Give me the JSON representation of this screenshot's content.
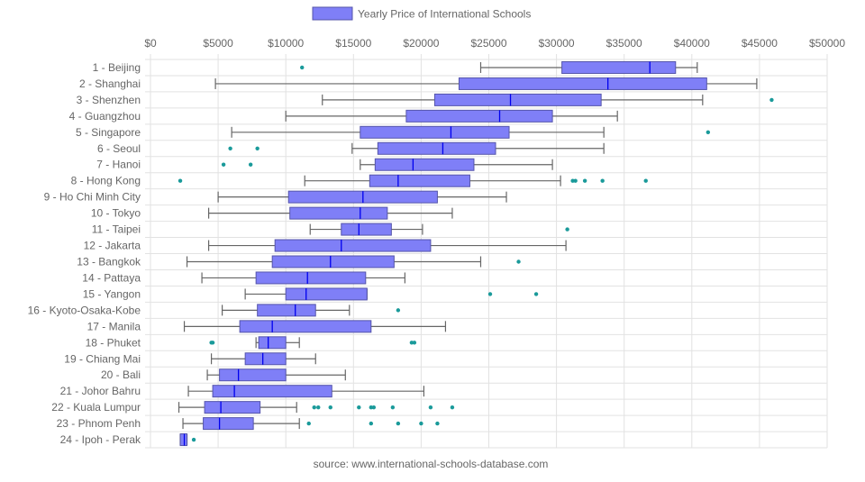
{
  "chart_data": {
    "type": "boxplot",
    "orientation": "horizontal",
    "legend": {
      "label": "Yearly Price of International Schools",
      "position": "top"
    },
    "source": "source: www.international-schools-database.com",
    "xlim": [
      0,
      50000
    ],
    "x_ticks": [
      0,
      5000,
      10000,
      15000,
      20000,
      25000,
      30000,
      35000,
      40000,
      45000,
      50000
    ],
    "x_tick_labels": [
      "$0",
      "$5000",
      "$10000",
      "$15000",
      "$20000",
      "$25000",
      "$30000",
      "$35000",
      "$40000",
      "$45000",
      "$50000"
    ],
    "grid": true,
    "colors": {
      "box_fill": "#7f7ff7",
      "box_border": "#5555aa",
      "median": "#0000ee",
      "whisker": "#666666",
      "outlier": "#1a9a9a"
    },
    "categories": [
      "1 - Beijing",
      "2 - Shanghai",
      "3 - Shenzhen",
      "4 - Guangzhou",
      "5 - Singapore",
      "6 - Seoul",
      "7 - Hanoi",
      "8 - Hong Kong",
      "9 - Ho Chi Minh City",
      "10 - Tokyo",
      "11 - Taipei",
      "12 - Jakarta",
      "13 - Bangkok",
      "14 - Pattaya",
      "15 - Yangon",
      "16 - Kyoto-Osaka-Kobe",
      "17 - Manila",
      "18 - Phuket",
      "19 - Chiang Mai",
      "20 - Bali",
      "21 - Johor Bahru",
      "22 - Kuala Lumpur",
      "23 - Phnom Penh",
      "24 - Ipoh - Perak"
    ],
    "boxes": [
      {
        "min": 24400,
        "q1": 30400,
        "median": 36900,
        "q3": 38800,
        "max": 40400,
        "outliers": [
          11200
        ]
      },
      {
        "min": 4800,
        "q1": 22800,
        "median": 33800,
        "q3": 41100,
        "max": 44800,
        "outliers": []
      },
      {
        "min": 12700,
        "q1": 21000,
        "median": 26600,
        "q3": 33300,
        "max": 40800,
        "outliers": [
          45900
        ]
      },
      {
        "min": 10000,
        "q1": 18900,
        "median": 25800,
        "q3": 29700,
        "max": 34500,
        "outliers": []
      },
      {
        "min": 6000,
        "q1": 15500,
        "median": 22200,
        "q3": 26500,
        "max": 33500,
        "outliers": [
          41200
        ]
      },
      {
        "min": 14900,
        "q1": 16800,
        "median": 21600,
        "q3": 25500,
        "max": 33500,
        "outliers": [
          5900,
          7900
        ]
      },
      {
        "min": 15500,
        "q1": 16600,
        "median": 19400,
        "q3": 23900,
        "max": 29700,
        "outliers": [
          5400,
          7400
        ]
      },
      {
        "min": 11400,
        "q1": 16200,
        "median": 18300,
        "q3": 23600,
        "max": 30300,
        "outliers": [
          2200,
          31200,
          31400,
          32100,
          33400,
          36600
        ]
      },
      {
        "min": 5000,
        "q1": 10200,
        "median": 15700,
        "q3": 21200,
        "max": 26300,
        "outliers": []
      },
      {
        "min": 4300,
        "q1": 10300,
        "median": 15500,
        "q3": 17500,
        "max": 22300,
        "outliers": []
      },
      {
        "min": 11800,
        "q1": 14100,
        "median": 15400,
        "q3": 17800,
        "max": 20100,
        "outliers": [
          30800
        ]
      },
      {
        "min": 4300,
        "q1": 9200,
        "median": 14100,
        "q3": 20700,
        "max": 30700,
        "outliers": []
      },
      {
        "min": 2700,
        "q1": 9000,
        "median": 13300,
        "q3": 18000,
        "max": 24400,
        "outliers": [
          27200
        ]
      },
      {
        "min": 3800,
        "q1": 7800,
        "median": 11600,
        "q3": 15900,
        "max": 18800,
        "outliers": []
      },
      {
        "min": 7000,
        "q1": 10000,
        "median": 11500,
        "q3": 16000,
        "max": 16000,
        "outliers": [
          25100,
          28500
        ]
      },
      {
        "min": 5300,
        "q1": 7900,
        "median": 10700,
        "q3": 12200,
        "max": 14700,
        "outliers": [
          18300
        ]
      },
      {
        "min": 2500,
        "q1": 6600,
        "median": 9000,
        "q3": 16300,
        "max": 21800,
        "outliers": []
      },
      {
        "min": 7800,
        "q1": 8000,
        "median": 8700,
        "q3": 10000,
        "max": 11000,
        "outliers": [
          4500,
          4600,
          19300,
          19500
        ]
      },
      {
        "min": 4500,
        "q1": 7000,
        "median": 8300,
        "q3": 10000,
        "max": 12200,
        "outliers": []
      },
      {
        "min": 4200,
        "q1": 5100,
        "median": 6500,
        "q3": 10000,
        "max": 14400,
        "outliers": []
      },
      {
        "min": 2800,
        "q1": 4600,
        "median": 6200,
        "q3": 13400,
        "max": 20200,
        "outliers": []
      },
      {
        "min": 2100,
        "q1": 4000,
        "median": 5200,
        "q3": 8100,
        "max": 10800,
        "outliers": [
          12100,
          12400,
          13300,
          15400,
          16300,
          16500,
          17900,
          20700,
          22300
        ]
      },
      {
        "min": 2400,
        "q1": 3900,
        "median": 5100,
        "q3": 7600,
        "max": 11000,
        "outliers": [
          11700,
          16300,
          18300,
          20000,
          21200
        ]
      },
      {
        "min": 2200,
        "q1": 2200,
        "median": 2500,
        "q3": 2700,
        "max": 2700,
        "outliers": [
          3200
        ]
      }
    ]
  }
}
